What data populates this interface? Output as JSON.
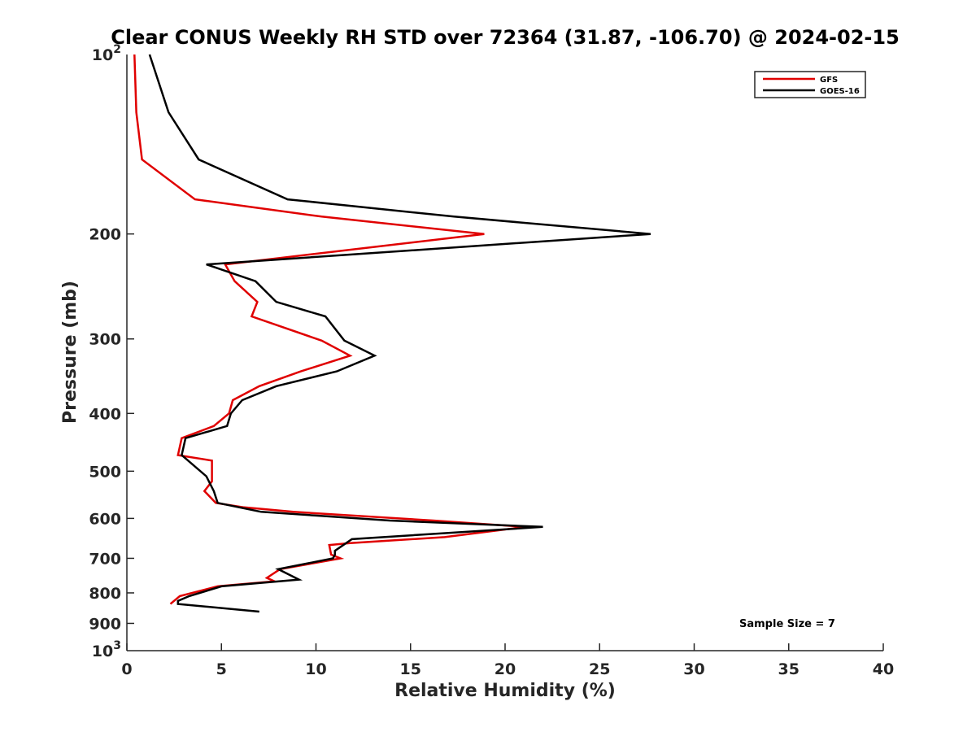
{
  "chart_data": {
    "type": "line",
    "title": "Clear CONUS Weekly RH STD over 72364 (31.87, -106.70) @ 2024-02-15",
    "xlabel": "Relative Humidity (%)",
    "ylabel": "Pressure (mb)",
    "xlim": [
      0,
      40
    ],
    "ylim": [
      100,
      1000
    ],
    "y_scale": "log",
    "y_reversed": true,
    "x_ticks": [
      "0",
      "5",
      "10",
      "15",
      "20",
      "25",
      "30",
      "35",
      "40"
    ],
    "y_ticks": [
      {
        "value": 100,
        "base": "10",
        "exp": "2"
      },
      {
        "value": 200,
        "label": "200"
      },
      {
        "value": 300,
        "label": "300"
      },
      {
        "value": 400,
        "label": "400"
      },
      {
        "value": 500,
        "label": "500"
      },
      {
        "value": 600,
        "label": "600"
      },
      {
        "value": 700,
        "label": "700"
      },
      {
        "value": 800,
        "label": "800"
      },
      {
        "value": 900,
        "label": "900"
      },
      {
        "value": 1000,
        "base": "10",
        "exp": "3"
      }
    ],
    "grid": false,
    "legend_position": "top-right",
    "series": [
      {
        "name": "GFS",
        "color": "#e00000",
        "points": [
          [
            0.4,
            100
          ],
          [
            0.5,
            125
          ],
          [
            0.8,
            150
          ],
          [
            3.6,
            175
          ],
          [
            10.3,
            187
          ],
          [
            18.9,
            200
          ],
          [
            5.2,
            225
          ],
          [
            5.7,
            240
          ],
          [
            6.9,
            260
          ],
          [
            6.6,
            275
          ],
          [
            10.3,
            302
          ],
          [
            11.8,
            320
          ],
          [
            9.2,
            340
          ],
          [
            7.0,
            360
          ],
          [
            5.6,
            380
          ],
          [
            5.4,
            400
          ],
          [
            4.6,
            420
          ],
          [
            2.9,
            440
          ],
          [
            2.7,
            470
          ],
          [
            4.5,
            480
          ],
          [
            4.5,
            520
          ],
          [
            4.1,
            540
          ],
          [
            4.7,
            565
          ],
          [
            6.2,
            575
          ],
          [
            8.8,
            585
          ],
          [
            16.2,
            605
          ],
          [
            21.1,
            620
          ],
          [
            16.8,
            645
          ],
          [
            11.8,
            660
          ],
          [
            10.7,
            665
          ],
          [
            10.8,
            690
          ],
          [
            11.3,
            700
          ],
          [
            8.1,
            730
          ],
          [
            7.4,
            755
          ],
          [
            7.8,
            765
          ],
          [
            4.8,
            780
          ],
          [
            2.8,
            810
          ],
          [
            2.3,
            835
          ]
        ]
      },
      {
        "name": "GOES-16",
        "color": "#000000",
        "points": [
          [
            1.2,
            100
          ],
          [
            2.2,
            125
          ],
          [
            3.8,
            150
          ],
          [
            8.5,
            175
          ],
          [
            17.3,
            187
          ],
          [
            27.7,
            200
          ],
          [
            4.2,
            225
          ],
          [
            6.8,
            240
          ],
          [
            7.9,
            260
          ],
          [
            10.5,
            275
          ],
          [
            11.5,
            302
          ],
          [
            13.1,
            320
          ],
          [
            11.1,
            340
          ],
          [
            7.9,
            360
          ],
          [
            6.1,
            380
          ],
          [
            5.5,
            400
          ],
          [
            5.3,
            420
          ],
          [
            3.1,
            440
          ],
          [
            2.9,
            470
          ],
          [
            4.2,
            510
          ],
          [
            4.6,
            540
          ],
          [
            4.8,
            565
          ],
          [
            7.1,
            585
          ],
          [
            13.9,
            605
          ],
          [
            22.0,
            620
          ],
          [
            11.9,
            650
          ],
          [
            11.0,
            680
          ],
          [
            11.0,
            690
          ],
          [
            10.9,
            700
          ],
          [
            8.0,
            730
          ],
          [
            9.1,
            760
          ],
          [
            5.0,
            780
          ],
          [
            3.3,
            810
          ],
          [
            2.7,
            825
          ],
          [
            2.7,
            835
          ],
          [
            7.0,
            860
          ]
        ]
      }
    ],
    "annotations": [
      "Sample Size = 7"
    ]
  }
}
